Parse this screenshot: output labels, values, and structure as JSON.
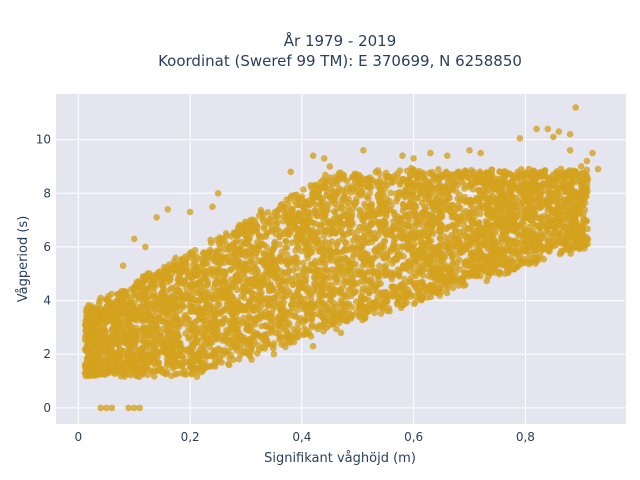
{
  "chart_data": {
    "type": "scatter",
    "title_line1": "År 1979 - 2019",
    "title_line2": "Koordinat (Sweref 99 TM): E 370699, N 6258850",
    "xlabel": "Signifikant våghöjd (m)",
    "ylabel": "Vågperiod (s)",
    "xlim": [
      -0.04,
      0.98
    ],
    "ylim": [
      -0.6,
      11.7
    ],
    "x_ticks": [
      0,
      0.2,
      0.4,
      0.6,
      0.8
    ],
    "x_tick_labels": [
      "0",
      "0,2",
      "0,4",
      "0,6",
      "0,8"
    ],
    "y_ticks": [
      0,
      2,
      4,
      6,
      8,
      10
    ],
    "y_tick_labels": [
      "0",
      "2",
      "4",
      "6",
      "8",
      "10"
    ],
    "grid": true,
    "marker_color": "#d4a21e",
    "background_color": "#e5e5ef",
    "points": [
      [
        0.89,
        11.2
      ],
      [
        0.82,
        10.4
      ],
      [
        0.84,
        10.4
      ],
      [
        0.86,
        10.3
      ],
      [
        0.88,
        10.2
      ],
      [
        0.85,
        10.1
      ],
      [
        0.79,
        10.05
      ],
      [
        0.04,
        0.0
      ],
      [
        0.05,
        0.0
      ],
      [
        0.06,
        0.0
      ],
      [
        0.09,
        0.0
      ],
      [
        0.1,
        0.0
      ],
      [
        0.11,
        0.0
      ],
      [
        0.02,
        1.4
      ],
      [
        0.02,
        2.5
      ],
      [
        0.03,
        3.5
      ],
      [
        0.03,
        1.6
      ],
      [
        0.02,
        1.2
      ],
      [
        0.04,
        4.1
      ],
      [
        0.05,
        1.3
      ],
      [
        0.9,
        9.0
      ],
      [
        0.92,
        9.5
      ],
      [
        0.91,
        9.2
      ],
      [
        0.93,
        8.9
      ],
      [
        0.87,
        8.6
      ],
      [
        0.88,
        9.6
      ],
      [
        0.6,
        9.3
      ],
      [
        0.58,
        9.4
      ],
      [
        0.63,
        9.5
      ],
      [
        0.7,
        9.6
      ],
      [
        0.72,
        9.5
      ],
      [
        0.66,
        9.4
      ],
      [
        0.25,
        8.0
      ],
      [
        0.24,
        7.5
      ],
      [
        0.16,
        7.4
      ],
      [
        0.14,
        7.1
      ],
      [
        0.2,
        7.3
      ],
      [
        0.38,
        8.8
      ],
      [
        0.42,
        9.4
      ],
      [
        0.44,
        9.3
      ],
      [
        0.51,
        9.6
      ],
      [
        0.45,
        9.0
      ],
      [
        0.1,
        6.3
      ],
      [
        0.12,
        6.0
      ],
      [
        0.08,
        5.3
      ],
      [
        0.47,
        4.0
      ],
      [
        0.52,
        4.3
      ],
      [
        0.56,
        4.9
      ],
      [
        0.61,
        5.3
      ],
      [
        0.65,
        5.7
      ],
      [
        0.69,
        6.0
      ],
      [
        0.74,
        6.4
      ],
      [
        0.78,
        6.6
      ],
      [
        0.82,
        7.1
      ],
      [
        0.86,
        7.4
      ],
      [
        0.9,
        8.1
      ],
      [
        0.35,
        2.0
      ],
      [
        0.42,
        2.3
      ],
      [
        0.31,
        1.8
      ],
      [
        0.27,
        1.6
      ],
      [
        0.2,
        1.5
      ],
      [
        0.15,
        1.45
      ],
      [
        0.08,
        1.35
      ],
      [
        0.47,
        2.8
      ],
      [
        0.51,
        3.4
      ],
      [
        0.55,
        3.9
      ]
    ]
  }
}
